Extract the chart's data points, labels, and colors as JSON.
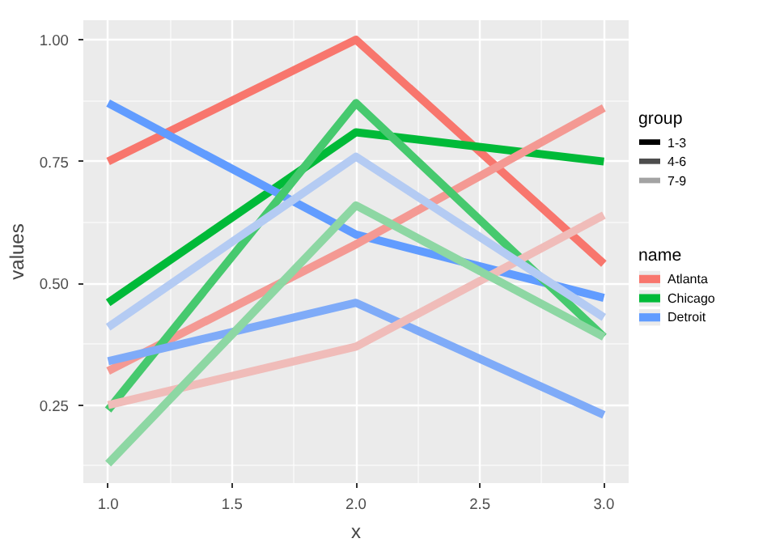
{
  "chart_data": {
    "type": "line",
    "xlabel": "x",
    "ylabel": "values",
    "x": [
      1,
      2,
      3
    ],
    "xlim": [
      0.9,
      3.1
    ],
    "ylim": [
      0.09,
      1.04
    ],
    "xticks": [
      {
        "value": 1,
        "label": "1.0"
      },
      1.5,
      {
        "value": 2,
        "label": "2.0"
      },
      2.5,
      {
        "value": 3,
        "label": "3.0"
      }
    ],
    "yticks": [
      {
        "value": 0.25,
        "label": "0.25"
      },
      {
        "value": 0.5,
        "label": "0.50"
      },
      {
        "value": 0.75,
        "label": "0.75"
      },
      {
        "value": 1,
        "label": "1.00"
      }
    ],
    "grid": true,
    "legend": "right",
    "line_style": "solid",
    "legend_title": "name",
    "annotations": [
      "group",
      "1-3",
      "4-6",
      "7-9"
    ],
    "series": [
      {
        "name": "Atlanta",
        "color": "#f8766d",
        "values": [
          0.75,
          1.0,
          0.54
        ]
      },
      {
        "name": "Chicago",
        "color": "#00ba38",
        "values": [
          0.46,
          0.81,
          0.75
        ]
      },
      {
        "name": "Detroit",
        "color": "#619cff",
        "values": [
          0.87,
          0.6,
          0.47
        ]
      },
      {
        "color": "#f49993",
        "values": [
          0.32,
          0.58,
          0.86
        ]
      },
      {
        "color": "#46c96e",
        "values": [
          0.24,
          0.87,
          0.39
        ]
      },
      {
        "color": "#7fabf8",
        "values": [
          0.34,
          0.46,
          0.23
        ]
      },
      {
        "color": "#f0bcb9",
        "values": [
          0.25,
          0.37,
          0.64
        ]
      },
      {
        "color": "#8dd7a3",
        "values": [
          0.13,
          0.66,
          0.39
        ]
      },
      {
        "color": "#b4cbf3",
        "values": [
          0.41,
          0.76,
          0.43
        ]
      }
    ]
  }
}
